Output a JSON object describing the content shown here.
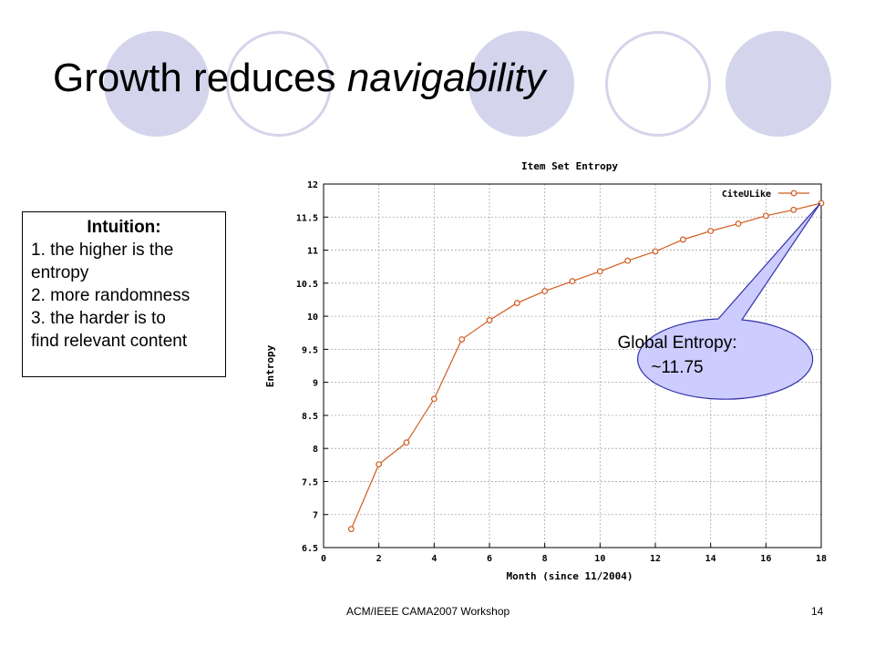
{
  "slide": {
    "title_plain": "Growth reduces ",
    "title_emphasis": "navigability",
    "footer": "ACM/IEEE CAMA2007 Workshop",
    "page_number": "14",
    "accent_color": "#d4d4ec"
  },
  "intuition": {
    "heading": "Intuition:",
    "lines": [
      "1. the higher is the",
      "entropy",
      "2. more randomness",
      "3. the harder is to",
      "find relevant content"
    ]
  },
  "callout": {
    "line1": "Global Entropy:",
    "line2": "~11.75",
    "fill_color": "#ccccff"
  },
  "chart_data": {
    "type": "line",
    "title": "Item Set Entropy",
    "xlabel": "Month (since 11/2004)",
    "ylabel": "Entropy",
    "xlim": [
      0,
      18
    ],
    "ylim": [
      6.5,
      12
    ],
    "x_ticks": [
      0,
      2,
      4,
      6,
      8,
      10,
      12,
      14,
      16,
      18
    ],
    "y_ticks": [
      6.5,
      7,
      7.5,
      8,
      8.5,
      9,
      9.5,
      10,
      10.5,
      11,
      11.5,
      12
    ],
    "grid": true,
    "legend_position": "top-right",
    "series": [
      {
        "name": "CiteULike",
        "color": "#d05a1e",
        "x": [
          1,
          2,
          3,
          4,
          5,
          6,
          7,
          8,
          9,
          10,
          11,
          12,
          13,
          14,
          15,
          16,
          17,
          18
        ],
        "values": [
          6.78,
          7.76,
          8.09,
          8.75,
          9.65,
          9.94,
          10.2,
          10.38,
          10.53,
          10.68,
          10.84,
          10.98,
          11.16,
          11.29,
          11.4,
          11.52,
          11.61,
          11.71
        ]
      }
    ]
  }
}
